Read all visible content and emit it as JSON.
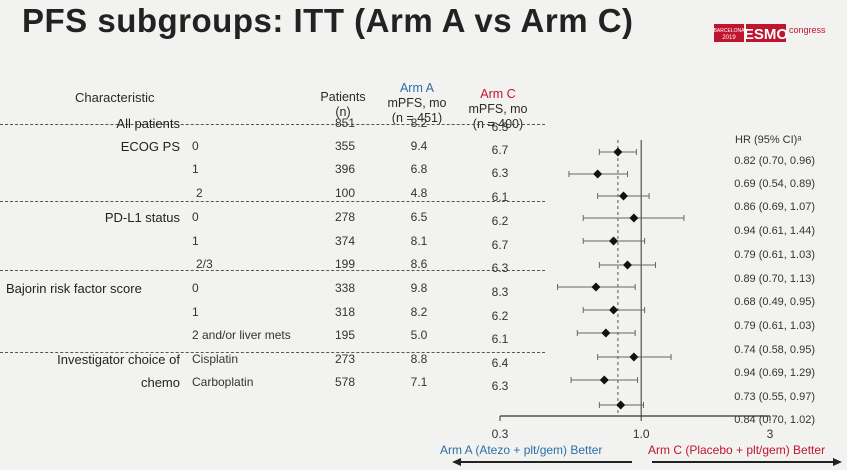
{
  "title": "PFS subgroups: ITT (Arm A vs Arm C)",
  "logo": {
    "city": "BARCELONA",
    "year": "2019",
    "brand": "ESMO",
    "suffix": "congress",
    "color": "#c0152f"
  },
  "header": {
    "characteristic": "Characteristic",
    "patients_line1": "Patients",
    "patients_line2": "(n)",
    "armA_line1": "Arm A",
    "armA_line2": "mPFS, mo",
    "armA_line3": "(n = 451)",
    "armC_line1": "Arm C",
    "armC_line2": "mPFS, mo",
    "armC_line3": "(n = 400)",
    "hr_label": "HR (95% CI)ᵃ"
  },
  "colors": {
    "armA": "#2c6fa8",
    "armC": "#c0152f",
    "dash": "#555555"
  },
  "rows": [
    {
      "group": "All patients",
      "sub": "",
      "n": "851",
      "a": "8.2",
      "c": "6.3",
      "hr": "0.82 (0.70, 0.96)"
    },
    {
      "group": "ECOG PS",
      "sub": "0",
      "n": "355",
      "a": "9.4",
      "c": "6.7",
      "hr": "0.69 (0.54, 0.89)"
    },
    {
      "group": "",
      "sub": "1",
      "n": "396",
      "a": "6.8",
      "c": "6.3",
      "hr": "0.86 (0.69, 1.07)"
    },
    {
      "group": "",
      "sub": "2",
      "n": "100",
      "a": "4.8",
      "c": "6.1",
      "hr": "0.94 (0.61, 1.44)"
    },
    {
      "group": "PD-L1 status",
      "sub": "0",
      "n": "278",
      "a": "6.5",
      "c": "6.2",
      "hr": "0.79 (0.61, 1.03)"
    },
    {
      "group": "",
      "sub": "1",
      "n": "374",
      "a": "8.1",
      "c": "6.7",
      "hr": "0.89 (0.70, 1.13)"
    },
    {
      "group": "",
      "sub": "2/3",
      "n": "199",
      "a": "8.6",
      "c": "6.3",
      "hr": "0.68 (0.49, 0.95)"
    },
    {
      "group": "Bajorin risk factor score",
      "sub": "0",
      "n": "338",
      "a": "9.8",
      "c": "8.3",
      "hr": "0.79 (0.61, 1.03)"
    },
    {
      "group": "",
      "sub": "1",
      "n": "318",
      "a": "8.2",
      "c": "6.2",
      "hr": "0.74 (0.58, 0.95)"
    },
    {
      "group": "",
      "sub": "2 and/or liver mets",
      "n": "195",
      "a": "5.0",
      "c": "6.1",
      "hr": "0.94 (0.69, 1.29)"
    },
    {
      "group": "Investigator choice of",
      "sub": "Cisplatin",
      "n": "273",
      "a": "8.8",
      "c": "6.4",
      "hr": "0.73 (0.55, 0.97)"
    },
    {
      "group": "chemo",
      "sub": "Carboplatin",
      "n": "578",
      "a": "7.1",
      "c": "6.3",
      "hr": "0.84 (0.70, 1.02)"
    }
  ],
  "chart_data": {
    "type": "forest",
    "x_scale": "log",
    "xlim": [
      0.3,
      3
    ],
    "reference_line": 1.0,
    "overall_line": 0.82,
    "tick_labels": [
      "0.3",
      "1.0",
      "3"
    ],
    "label_left": "Arm A (Atezo + plt/gem) Better",
    "label_right": "Arm C (Placebo + plt/gem) Better",
    "points": [
      {
        "hr": 0.82,
        "lo": 0.7,
        "hi": 0.96
      },
      {
        "hr": 0.69,
        "lo": 0.54,
        "hi": 0.89
      },
      {
        "hr": 0.86,
        "lo": 0.69,
        "hi": 1.07
      },
      {
        "hr": 0.94,
        "lo": 0.61,
        "hi": 1.44
      },
      {
        "hr": 0.79,
        "lo": 0.61,
        "hi": 1.03
      },
      {
        "hr": 0.89,
        "lo": 0.7,
        "hi": 1.13
      },
      {
        "hr": 0.68,
        "lo": 0.49,
        "hi": 0.95
      },
      {
        "hr": 0.79,
        "lo": 0.61,
        "hi": 1.03
      },
      {
        "hr": 0.74,
        "lo": 0.58,
        "hi": 0.95
      },
      {
        "hr": 0.94,
        "lo": 0.69,
        "hi": 1.29
      },
      {
        "hr": 0.73,
        "lo": 0.55,
        "hi": 0.97
      },
      {
        "hr": 0.84,
        "lo": 0.7,
        "hi": 1.02
      }
    ]
  }
}
